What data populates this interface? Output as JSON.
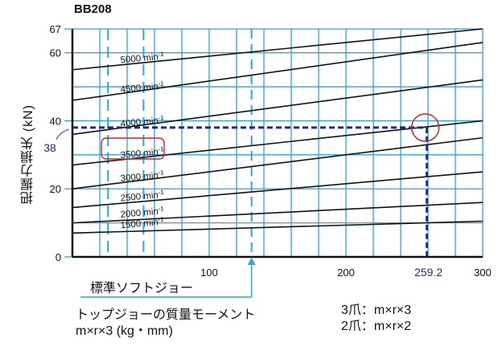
{
  "chart_data": {
    "type": "line",
    "title": "BB208",
    "ylabel": "把握力損失 (kN)",
    "xlabel_line1": "トップジョーの質量モーメント",
    "xlabel_line2": "m×r×3 (kg・mm)",
    "xlim": [
      0,
      300
    ],
    "ylim": [
      0,
      67
    ],
    "x_tick_labels": [
      "100",
      "200",
      "300"
    ],
    "x_ticks": [
      100,
      200,
      300
    ],
    "y_tick_labels": [
      "0",
      "20",
      "40",
      "60",
      "67"
    ],
    "y_ticks": [
      0,
      20,
      40,
      60,
      67
    ],
    "grid": true,
    "series": [
      {
        "name": "1500 min-1",
        "x": [
          0,
          300
        ],
        "y": [
          7,
          10.5
        ]
      },
      {
        "name": "2000 min-1",
        "x": [
          0,
          300
        ],
        "y": [
          10,
          16
        ]
      },
      {
        "name": "2500 min-1",
        "x": [
          0,
          300
        ],
        "y": [
          14.5,
          25
        ]
      },
      {
        "name": "3000 min-1",
        "x": [
          0,
          300
        ],
        "y": [
          20,
          35
        ]
      },
      {
        "name": "3500 min-1",
        "x": [
          0,
          300
        ],
        "y": [
          27,
          40
        ]
      },
      {
        "name": "4000 min-1",
        "x": [
          0,
          300
        ],
        "y": [
          36,
          52
        ]
      },
      {
        "name": "4500 min-1",
        "x": [
          0,
          300
        ],
        "y": [
          46,
          63
        ]
      },
      {
        "name": "5000 min-1",
        "x": [
          0,
          300
        ],
        "y": [
          55,
          67
        ]
      }
    ],
    "annotations": {
      "readout_x": 259.2,
      "readout_x_label": "259.2",
      "readout_y": 38,
      "readout_y_label": "38",
      "highlight_series": "3500 min-1",
      "standard_jaw_x": 131,
      "standard_jaw_label": "標準ソフトジョー"
    },
    "formulas": [
      "3爪：m×r×3",
      "2爪：m×r×2"
    ],
    "colors": {
      "grid": "#2aa6e0",
      "lines": "#111111",
      "readout": "#1a2a9a",
      "highlight": "#d42020"
    }
  }
}
